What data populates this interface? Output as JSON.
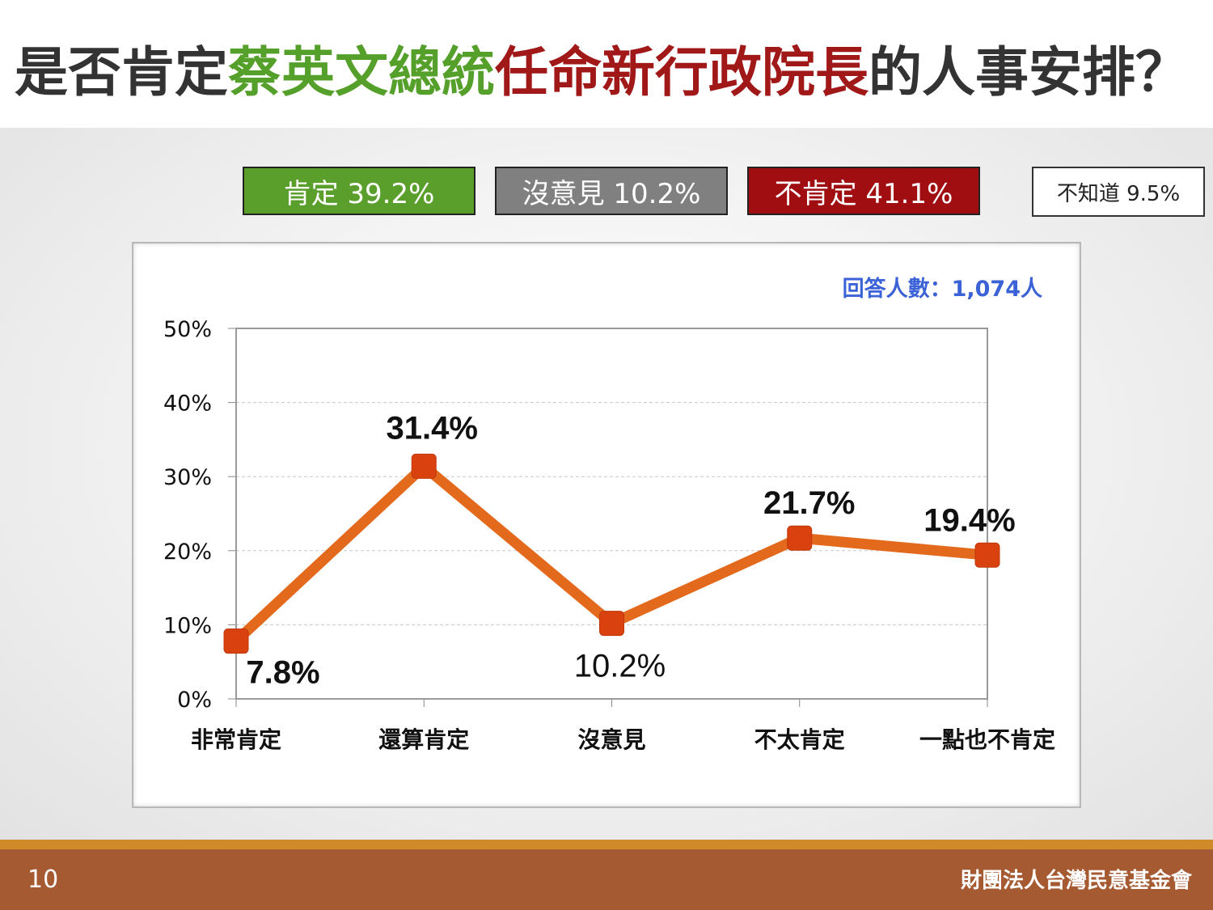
{
  "slide": {
    "title_parts": [
      "是否肯定",
      "蔡英文總統",
      "任命新行政院長",
      "的人事安排？"
    ],
    "page_number": "10",
    "organization": "財團法人台灣民意基金會"
  },
  "summary": {
    "approve": "肯定 39.2%",
    "neutral": "沒意見 10.2%",
    "disapprove": "不肯定 41.1%",
    "unknown": "不知道 9.5%"
  },
  "colors": {
    "approve": "#5a9e2c",
    "neutral": "#808080",
    "disapprove": "#a00e12",
    "line": "#e3691c",
    "marker": "#d9420f",
    "respondents": "#3b62d6"
  },
  "chart_data": {
    "type": "line",
    "categories": [
      "非常肯定",
      "還算肯定",
      "沒意見",
      "不太肯定",
      "一點也不肯定"
    ],
    "values": [
      7.8,
      31.4,
      10.2,
      21.7,
      19.4
    ],
    "value_labels": [
      "7.8%",
      "31.4%",
      "10.2%",
      "21.7%",
      "19.4%"
    ],
    "ylim": [
      0,
      50
    ],
    "yticks": [
      0,
      10,
      20,
      30,
      40,
      50
    ],
    "ytick_labels": [
      "0%",
      "10%",
      "20%",
      "30%",
      "40%",
      "50%"
    ],
    "grid": true,
    "annotation": "回答人數：1,074人"
  }
}
